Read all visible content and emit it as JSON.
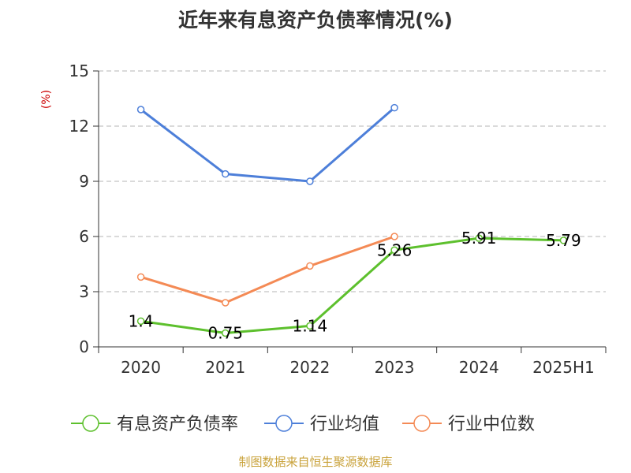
{
  "chart_data": {
    "type": "line",
    "title": "近年来有息资产负债率情况(%)",
    "ylabel": "(%)",
    "categories": [
      "2020",
      "2021",
      "2022",
      "2023",
      "2024",
      "2025H1"
    ],
    "ylim": [
      0,
      15
    ],
    "yticks": [
      0,
      3,
      6,
      9,
      12,
      15
    ],
    "grid": true,
    "legend_position": "bottom",
    "series": [
      {
        "name": "有息资产负债率",
        "color": "#5dc02d",
        "values": [
          1.4,
          0.75,
          1.14,
          5.26,
          5.91,
          5.79
        ],
        "labels": [
          "1.4",
          "0.75",
          "1.14",
          "5.26",
          "5.91",
          "5.79"
        ]
      },
      {
        "name": "行业均值",
        "color": "#4d7fd9",
        "values": [
          12.9,
          9.4,
          9.0,
          13.0,
          null,
          null
        ]
      },
      {
        "name": "行业中位数",
        "color": "#f48a55",
        "values": [
          3.8,
          2.4,
          4.4,
          6.0,
          null,
          null
        ]
      }
    ],
    "source": "制图数据来自恒生聚源数据库"
  }
}
